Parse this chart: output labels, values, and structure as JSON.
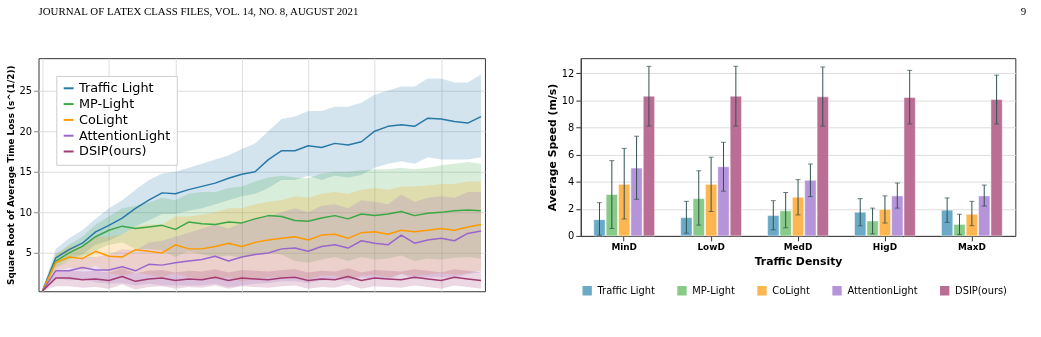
{
  "chart_data": [
    {
      "type": "line",
      "annotations": [
        "JOURNAL OF LATEX CLASS FILES, VOL. 14, NO. 8, AUGUST 2021",
        "9"
      ],
      "ylabel": "Square Root of Average Time Loss (s^(1/2))",
      "categories": [
        null,
        null,
        null,
        null,
        null,
        null,
        null,
        null,
        null,
        null,
        null,
        null,
        null,
        null,
        null,
        null,
        null,
        null,
        null,
        null,
        null,
        null,
        null,
        null,
        null,
        null,
        null,
        null,
        null,
        null,
        null,
        null,
        null,
        null
      ],
      "ylim": [
        0.28,
        29
      ],
      "yticks": [
        5,
        10,
        15,
        20,
        25
      ],
      "grid": true,
      "legend": "top left",
      "tick_labels": "y",
      "line_style": "solid",
      "marker": "none",
      "series": [
        {
          "name": "Traffic Light",
          "color": "#2878a8",
          "values": [
            0.3,
            4.4,
            5.4,
            6.2,
            7.6,
            8.4,
            9.3,
            10.5,
            11.5,
            12.4,
            12.3,
            12.8,
            13.2,
            13.6,
            14.2,
            14.7,
            15.0,
            16.5,
            17.6,
            17.6,
            18.2,
            18.0,
            18.5,
            18.3,
            18.7,
            20.0,
            20.6,
            20.8,
            20.6,
            21.6,
            21.5,
            21.2,
            21.0,
            21.8
          ],
          "upper": [
            0.5,
            5.5,
            6.8,
            7.8,
            9.2,
            10.5,
            11.5,
            12.8,
            14,
            14.8,
            15,
            15.5,
            16,
            16.5,
            17,
            17.8,
            18.5,
            20,
            21.5,
            21.8,
            22.5,
            22.5,
            23,
            23,
            23.5,
            24.5,
            25,
            25.5,
            25.5,
            26.5,
            26.5,
            26,
            26,
            27
          ],
          "lower": [
            0.3,
            3.5,
            4.2,
            4.8,
            6,
            6.5,
            7.3,
            8.3,
            9,
            9.8,
            9.8,
            10.2,
            10.5,
            11,
            11.5,
            12,
            12.3,
            13,
            14,
            14,
            14.5,
            14,
            14.5,
            14.3,
            14.6,
            15.5,
            16,
            16.3,
            16,
            16.8,
            16.5,
            16.5,
            16.5,
            16.8
          ]
        },
        {
          "name": "MP-Light",
          "color": "#3aa845",
          "values": [
            0.3,
            4.0,
            5.0,
            5.8,
            7.0,
            7.8,
            8.3,
            8.0,
            8.2,
            8.4,
            7.9,
            8.8,
            8.6,
            8.5,
            8.8,
            8.7,
            9.2,
            9.6,
            9.5,
            9.0,
            8.9,
            9.3,
            9.6,
            9.2,
            9.8,
            9.6,
            9.8,
            10.1,
            9.6,
            9.9,
            10.0,
            10.2,
            10.3,
            10.2
          ],
          "upper": [
            0.4,
            4.8,
            6,
            7,
            8.5,
            9.5,
            10.5,
            10.8,
            11.2,
            11.8,
            11.5,
            12.3,
            12.5,
            12.5,
            13,
            13.2,
            13.8,
            14.3,
            14.5,
            14.3,
            14.2,
            14.8,
            15,
            15,
            15.2,
            15.3,
            15.3,
            15.5,
            15.3,
            15.5,
            15.8,
            16,
            16.2,
            16
          ],
          "lower": [
            0.3,
            3.2,
            4,
            4.5,
            5.3,
            6,
            6.3,
            5.5,
            5.5,
            5.3,
            4.5,
            5.2,
            4.8,
            4.5,
            4.7,
            4.4,
            4.8,
            5,
            4.8,
            4,
            3.8,
            4.2,
            4.5,
            4,
            4.5,
            4.2,
            4.3,
            4.7,
            4,
            4.3,
            4.2,
            4.4,
            4.5,
            4.3
          ]
        },
        {
          "name": "CoLight",
          "color": "#ff9900",
          "values": [
            0.3,
            3.8,
            4.5,
            4.3,
            5.2,
            4.6,
            4.5,
            5.4,
            5.2,
            5.0,
            6.0,
            5.5,
            5.5,
            5.8,
            6.2,
            5.8,
            6.3,
            6.6,
            6.8,
            7.0,
            6.6,
            7.2,
            7.3,
            6.8,
            7.5,
            7.6,
            7.3,
            7.8,
            7.6,
            7.8,
            8.0,
            7.8,
            8.2,
            8.5
          ],
          "upper": [
            0.4,
            4.8,
            5.8,
            5.8,
            7,
            7,
            7.3,
            8.3,
            8.5,
            8.5,
            9.5,
            9.5,
            9.7,
            10,
            10.5,
            10.5,
            11,
            11.3,
            11.5,
            12,
            11.8,
            12.3,
            12.5,
            12.3,
            12.8,
            13,
            12.8,
            13.2,
            13.2,
            13.3,
            13.5,
            13.5,
            13.8,
            13.8
          ],
          "lower": [
            0.3,
            2.8,
            3.2,
            2.8,
            3.4,
            2.5,
            2.2,
            2.6,
            2.3,
            2,
            2.5,
            2,
            1.8,
            1.8,
            2,
            1.5,
            1.8,
            2,
            2,
            2.2,
            1.8,
            2.2,
            2.2,
            1.8,
            2.2,
            2.3,
            2,
            2.4,
            2.2,
            2.3,
            2.5,
            2.3,
            2.5,
            2.8
          ]
        },
        {
          "name": "AttentionLight",
          "color": "#9966cc",
          "values": [
            0.3,
            2.8,
            2.8,
            3.2,
            2.9,
            2.9,
            3.3,
            2.8,
            3.6,
            3.5,
            3.8,
            4.0,
            4.2,
            4.6,
            4.0,
            4.5,
            4.8,
            5.0,
            5.5,
            5.6,
            5.2,
            5.8,
            6.0,
            5.6,
            6.5,
            6.2,
            6.0,
            7.2,
            6.2,
            6.6,
            6.8,
            6.5,
            7.4,
            7.7
          ],
          "upper": [
            0.4,
            3.5,
            4,
            4.5,
            4.5,
            4.8,
            5.5,
            5.3,
            6.3,
            6.5,
            7,
            7.5,
            8,
            8.5,
            8,
            8.7,
            9.3,
            9.5,
            10,
            10.5,
            10,
            10.8,
            11,
            10.5,
            11.5,
            11.3,
            11,
            12.2,
            11.3,
            11.8,
            12,
            11.8,
            12.5,
            12.5
          ],
          "lower": [
            0.3,
            2,
            1.6,
            1.8,
            1.4,
            1.2,
            1.3,
            1,
            1.2,
            1,
            1,
            1,
            1,
            1.2,
            0.8,
            1,
            1.2,
            1.3,
            1.5,
            1.5,
            1.3,
            1.6,
            1.8,
            1.5,
            2,
            1.8,
            1.7,
            2.4,
            1.8,
            2,
            2,
            1.9,
            2.4,
            2.6
          ]
        },
        {
          "name": "DSIP(ours)",
          "color": "#a23b72",
          "values": [
            0.3,
            1.9,
            1.9,
            1.7,
            1.8,
            1.6,
            2.1,
            1.5,
            1.8,
            1.9,
            1.6,
            1.8,
            1.7,
            2.0,
            1.6,
            1.9,
            1.8,
            1.7,
            1.9,
            2.0,
            1.6,
            1.8,
            1.7,
            2.1,
            1.6,
            1.9,
            1.8,
            1.7,
            2.0,
            1.8,
            1.6,
            2.0,
            1.8,
            1.6
          ],
          "upper": [
            0.4,
            2.9,
            2.9,
            2.7,
            2.8,
            2.6,
            3.1,
            2.5,
            2.8,
            2.9,
            2.6,
            2.8,
            2.7,
            3,
            2.6,
            2.9,
            2.8,
            2.7,
            2.9,
            3,
            2.6,
            2.8,
            2.7,
            3.1,
            2.6,
            2.9,
            2.8,
            2.7,
            3,
            2.8,
            2.6,
            3,
            2.8,
            2.6
          ],
          "lower": [
            0.3,
            0.9,
            0.9,
            0.7,
            0.8,
            0.6,
            1.1,
            0.5,
            0.8,
            0.9,
            0.6,
            0.8,
            0.7,
            1,
            0.6,
            0.9,
            0.8,
            0.7,
            0.9,
            1,
            0.6,
            0.8,
            0.7,
            1.1,
            0.6,
            0.9,
            0.8,
            0.7,
            1,
            0.8,
            0.6,
            1,
            0.8,
            0.6
          ]
        }
      ]
    },
    {
      "type": "bar",
      "xlabel": "Traffic Density",
      "ylabel": "Average Speed (m/s)",
      "categories": [
        "MinD",
        "LowD",
        "MedD",
        "HigD",
        "MaxD"
      ],
      "ylim": [
        0,
        13.1
      ],
      "yticks": [
        0,
        2,
        4,
        6,
        8,
        10,
        12
      ],
      "grid": "y",
      "legend": "bottom",
      "series": [
        {
          "name": "Traffic Light",
          "color": "#64a6c4",
          "values": [
            1.2,
            1.35,
            1.5,
            1.75,
            1.9
          ],
          "errors": [
            [
              0.05,
              2.45
            ],
            [
              0.2,
              2.55
            ],
            [
              0.45,
              2.6
            ],
            [
              0.75,
              2.75
            ],
            [
              1.0,
              2.8
            ]
          ]
        },
        {
          "name": "MP-Light",
          "color": "#82c882",
          "values": [
            3.05,
            2.75,
            1.85,
            1.1,
            0.85
          ],
          "errors": [
            [
              0.55,
              5.55
            ],
            [
              0.8,
              4.8
            ],
            [
              0.6,
              3.2
            ],
            [
              0.15,
              2.05
            ],
            [
              0.1,
              1.6
            ]
          ]
        },
        {
          "name": "CoLight",
          "color": "#ffb347",
          "values": [
            3.8,
            3.8,
            2.85,
            1.95,
            1.6
          ],
          "errors": [
            [
              1.25,
              6.45
            ],
            [
              1.8,
              5.8
            ],
            [
              1.55,
              4.15
            ],
            [
              0.95,
              2.95
            ],
            [
              0.75,
              2.55
            ]
          ]
        },
        {
          "name": "AttentionLight",
          "color": "#b38fd9",
          "values": [
            5.0,
            5.1,
            4.1,
            2.95,
            2.95
          ],
          "errors": [
            [
              2.7,
              7.35
            ],
            [
              3.3,
              6.9
            ],
            [
              2.9,
              5.3
            ],
            [
              2.05,
              3.9
            ],
            [
              2.2,
              3.75
            ]
          ]
        },
        {
          "name": "DSIP(ours)",
          "color": "#b8678f",
          "values": [
            10.3,
            10.3,
            10.25,
            10.2,
            10.05
          ],
          "errors": [
            [
              8.1,
              12.5
            ],
            [
              8.1,
              12.5
            ],
            [
              8.1,
              12.45
            ],
            [
              8.25,
              12.2
            ],
            [
              8.25,
              11.85
            ]
          ]
        }
      ]
    }
  ]
}
